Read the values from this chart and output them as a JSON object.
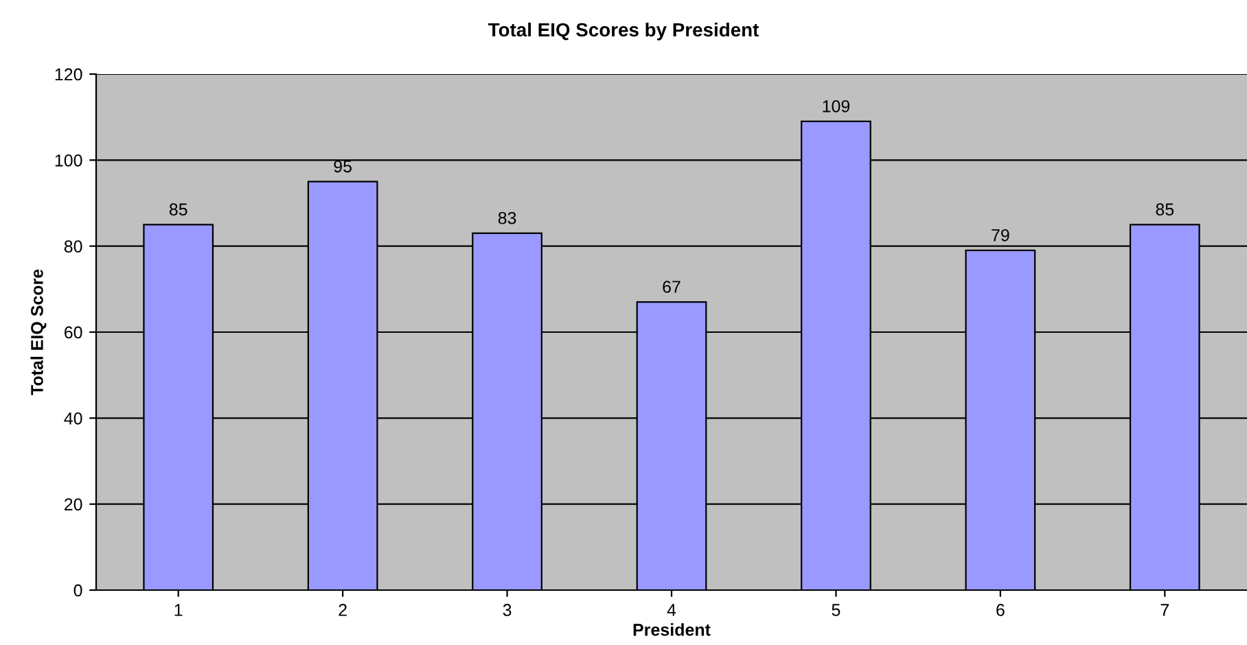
{
  "chart_data": {
    "type": "bar",
    "title": "Total EIQ Scores by President",
    "xlabel": "President",
    "ylabel": "Total EIQ Score",
    "categories": [
      "1",
      "2",
      "3",
      "4",
      "5",
      "6",
      "7"
    ],
    "values": [
      85,
      95,
      83,
      67,
      109,
      79,
      85
    ],
    "color": "#9999ff",
    "ylim": [
      0,
      120
    ],
    "yticks": [
      0,
      20,
      40,
      60,
      80,
      100,
      120
    ],
    "grid": "y",
    "data_labels": true,
    "legend": false
  }
}
